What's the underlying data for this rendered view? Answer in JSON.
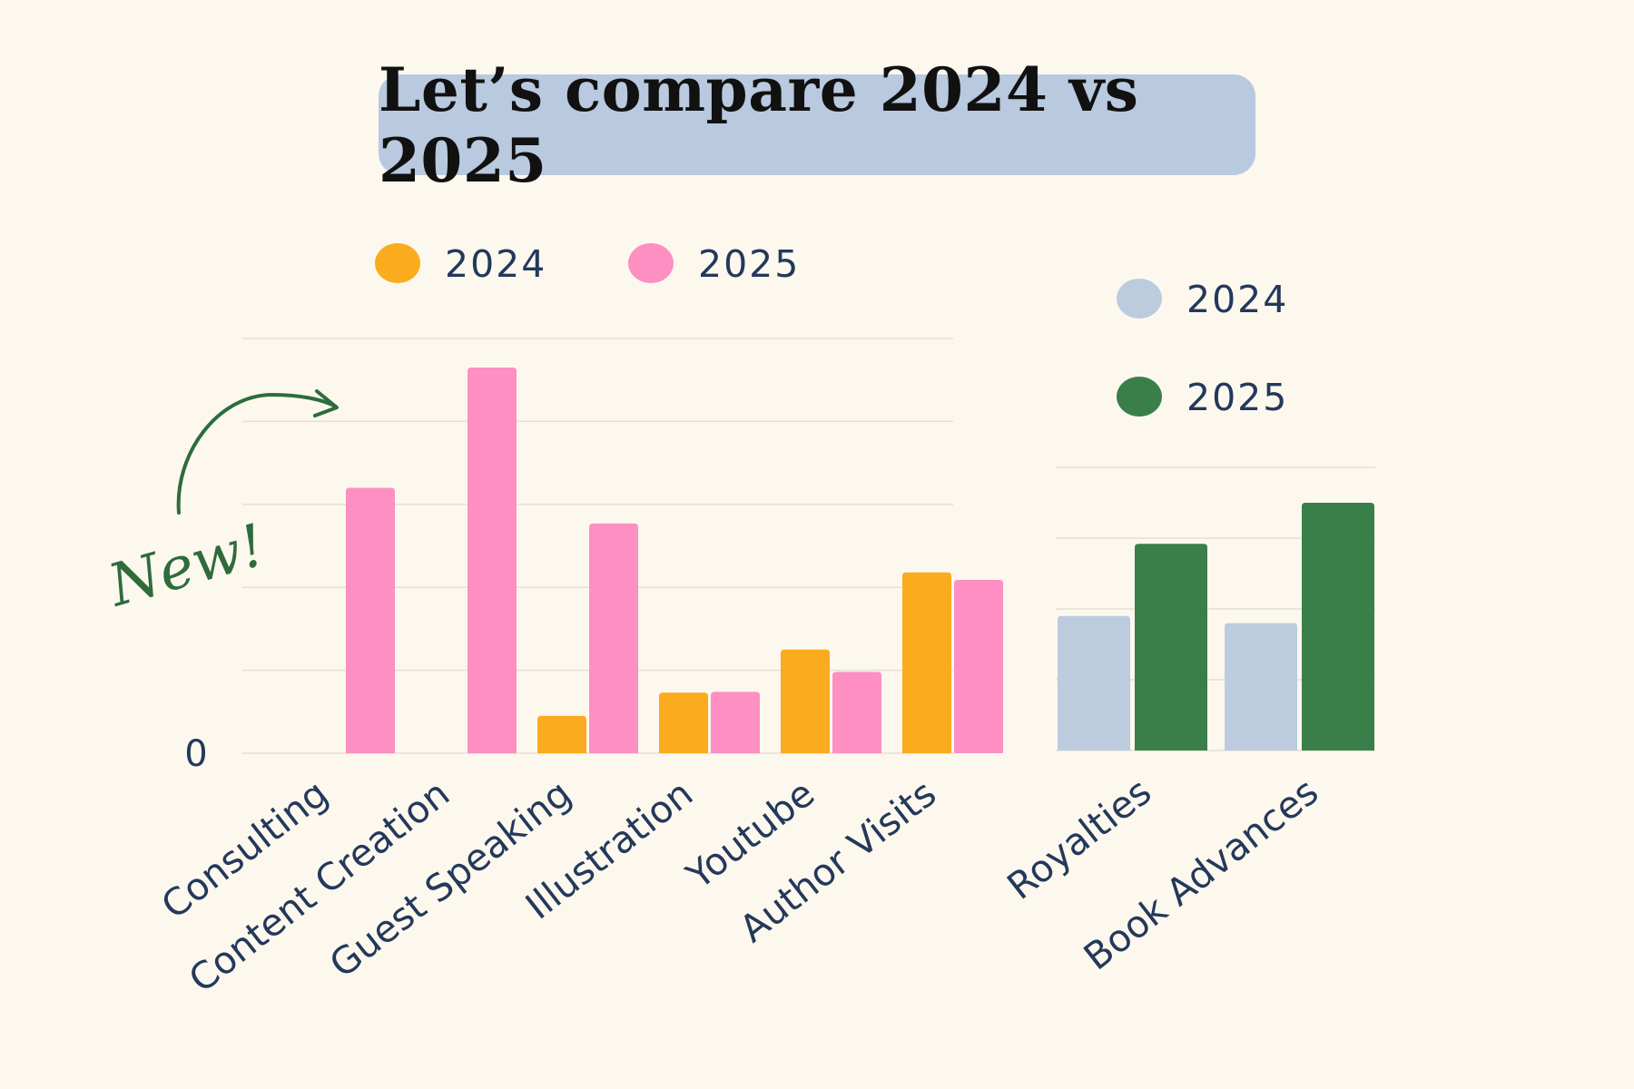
{
  "title": "Let’s compare 2024 vs 2025",
  "annotation": {
    "text": "New!",
    "color": "#2f6b3c"
  },
  "chart_data": [
    {
      "type": "bar",
      "categories": [
        "Consulting",
        "Content Creation",
        "Guest Speaking",
        "Illustration",
        "Youtube",
        "Author Visits"
      ],
      "series": [
        {
          "name": "2024",
          "color": "#fbab1e",
          "values": [
            0,
            0,
            0.45,
            0.73,
            1.25,
            2.18
          ]
        },
        {
          "name": "2025",
          "color": "#fd8fc3",
          "values": [
            3.2,
            4.65,
            2.77,
            0.74,
            0.98,
            2.09
          ]
        }
      ],
      "yticks": [
        "0"
      ],
      "ylim": [
        0,
        5
      ],
      "grid": true,
      "legend": "top"
    },
    {
      "type": "bar",
      "categories": [
        "Royalties",
        "Book Advances"
      ],
      "series": [
        {
          "name": "2024",
          "color": "#bccbde",
          "values": [
            1.9,
            1.8
          ]
        },
        {
          "name": "2025",
          "color": "#3a7f4a",
          "values": [
            2.92,
            3.5
          ]
        }
      ],
      "ylim": [
        0,
        4
      ],
      "grid": true,
      "legend": "top"
    }
  ]
}
